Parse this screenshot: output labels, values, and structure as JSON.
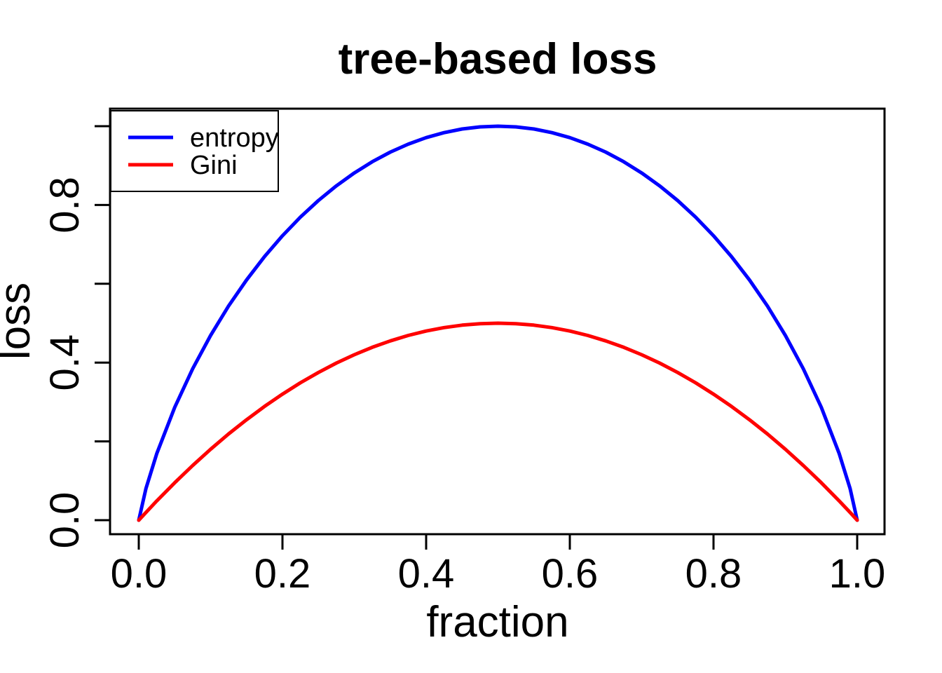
{
  "page": {
    "background": "#ffffff"
  },
  "chart_data": {
    "type": "line",
    "title": "tree-based loss",
    "xlabel": "fraction",
    "ylabel": "loss",
    "xlim": [
      0,
      1
    ],
    "ylim": [
      0,
      1
    ],
    "grid": false,
    "frame_color": "#000000",
    "x_ticks": [
      0,
      0.2,
      0.4,
      0.6,
      0.8,
      1.0
    ],
    "x_tick_labels": [
      "0.0",
      "0.2",
      "0.4",
      "0.6",
      "0.8",
      "1.0"
    ],
    "y_ticks": [
      0,
      0.2,
      0.4,
      0.6,
      0.8,
      1.0
    ],
    "y_tick_labels": [
      "0.0",
      "",
      "0.4",
      "",
      "0.8",
      ""
    ],
    "legend": {
      "position": "top-left",
      "entries": [
        {
          "label": "entropy",
          "color": "#0000FF"
        },
        {
          "label": "Gini",
          "color": "#FF0000"
        }
      ]
    },
    "x": [
      0,
      0.01,
      0.025,
      0.05,
      0.075,
      0.1,
      0.125,
      0.15,
      0.175,
      0.2,
      0.225,
      0.25,
      0.275,
      0.3,
      0.325,
      0.35,
      0.375,
      0.4,
      0.425,
      0.45,
      0.475,
      0.5,
      0.525,
      0.55,
      0.575,
      0.6,
      0.625,
      0.65,
      0.675,
      0.7,
      0.725,
      0.75,
      0.775,
      0.8,
      0.825,
      0.85,
      0.875,
      0.9,
      0.925,
      0.95,
      0.975,
      0.99,
      1.0
    ],
    "series": [
      {
        "name": "entropy",
        "color": "#0000FF",
        "line_width": 5,
        "values": [
          0,
          0.0808,
          0.1687,
          0.2864,
          0.3843,
          0.469,
          0.5436,
          0.6098,
          0.669,
          0.7219,
          0.7692,
          0.8113,
          0.8485,
          0.8813,
          0.9097,
          0.9341,
          0.9544,
          0.971,
          0.9837,
          0.9928,
          0.9982,
          1.0,
          0.9982,
          0.9928,
          0.9837,
          0.971,
          0.9544,
          0.9341,
          0.9097,
          0.8813,
          0.8485,
          0.8113,
          0.7692,
          0.7219,
          0.669,
          0.6098,
          0.5436,
          0.469,
          0.3843,
          0.2864,
          0.1687,
          0.0808,
          0
        ]
      },
      {
        "name": "Gini",
        "color": "#FF0000",
        "line_width": 5,
        "values": [
          0,
          0.0198,
          0.0488,
          0.095,
          0.1388,
          0.18,
          0.2188,
          0.255,
          0.2888,
          0.32,
          0.3488,
          0.375,
          0.3988,
          0.42,
          0.4388,
          0.455,
          0.4688,
          0.48,
          0.4888,
          0.495,
          0.4988,
          0.5,
          0.4988,
          0.495,
          0.4888,
          0.48,
          0.4688,
          0.455,
          0.4388,
          0.42,
          0.3988,
          0.375,
          0.3488,
          0.32,
          0.2888,
          0.255,
          0.2188,
          0.18,
          0.1388,
          0.095,
          0.0488,
          0.0198,
          0
        ]
      }
    ]
  }
}
